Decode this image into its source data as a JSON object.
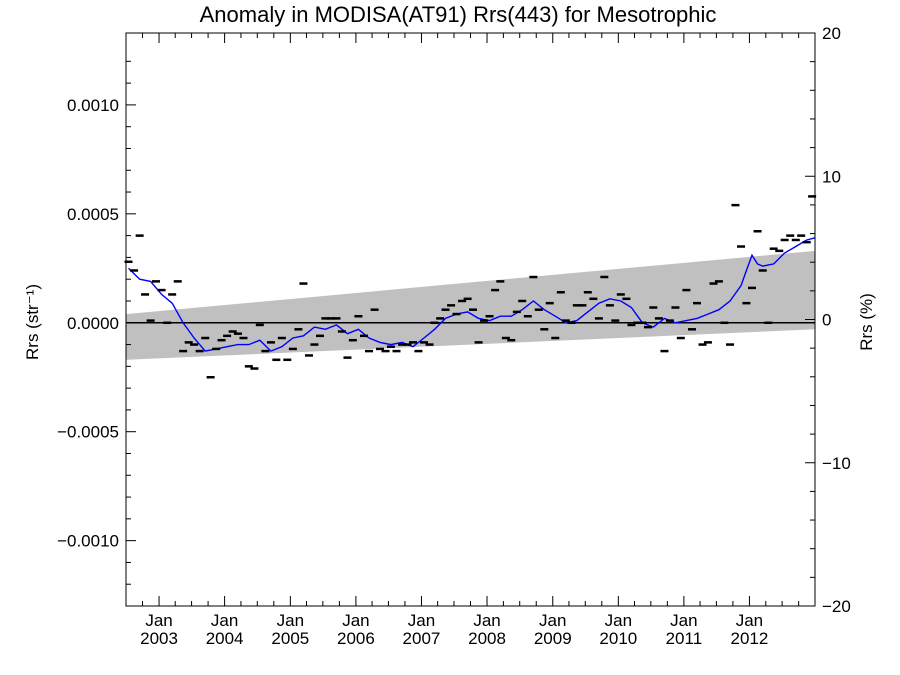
{
  "chart_data": {
    "type": "scatter",
    "title": "Anomaly in MODISA(AT91) Rrs(443) for Mesotrophic",
    "ylabel": "Rrs (str⁻¹)",
    "ylabel_right": "Rrs (%)",
    "xlim": [
      "2002-07-01",
      "2012-12-31"
    ],
    "ylim": [
      -0.0013,
      0.00133
    ],
    "ylim_right": [
      -20,
      20
    ],
    "x_ticks": [
      {
        "date": "2003-01-01",
        "top": "Jan",
        "bottom": "2003"
      },
      {
        "date": "2004-01-01",
        "top": "Jan",
        "bottom": "2004"
      },
      {
        "date": "2005-01-01",
        "top": "Jan",
        "bottom": "2005"
      },
      {
        "date": "2006-01-01",
        "top": "Jan",
        "bottom": "2006"
      },
      {
        "date": "2007-01-01",
        "top": "Jan",
        "bottom": "2007"
      },
      {
        "date": "2008-01-01",
        "top": "Jan",
        "bottom": "2008"
      },
      {
        "date": "2009-01-01",
        "top": "Jan",
        "bottom": "2009"
      },
      {
        "date": "2010-01-01",
        "top": "Jan",
        "bottom": "2010"
      },
      {
        "date": "2011-01-01",
        "top": "Jan",
        "bottom": "2011"
      },
      {
        "date": "2012-01-01",
        "top": "Jan",
        "bottom": "2012"
      }
    ],
    "y_ticks_left": [
      {
        "value": 0.001,
        "label": "0.0010"
      },
      {
        "value": 0.0005,
        "label": "0.0005"
      },
      {
        "value": 0,
        "label": "0.0000"
      },
      {
        "value": -0.0005,
        "label": "−0.0005"
      },
      {
        "value": -0.001,
        "label": "−0.0010"
      }
    ],
    "y_ticks_right": [
      {
        "value": 20,
        "label": "20"
      },
      {
        "value": 10,
        "label": "10"
      },
      {
        "value": 0,
        "label": "0"
      },
      {
        "value": -10,
        "label": "−10"
      },
      {
        "value": -20,
        "label": "−20"
      }
    ],
    "trend_band": {
      "x": [
        "2002-07-01",
        "2012-12-31"
      ],
      "upper": [
        4e-05,
        0.00033
      ],
      "lower": [
        -0.00017,
        -3e-05
      ]
    },
    "zero_line": 0,
    "colors": {
      "band": "#c0c0c0",
      "line": "#0000ff",
      "markers": "#000000",
      "axes": "#000000"
    },
    "series": [
      {
        "marker": "dash",
        "points": [
          [
            "2002-07-15",
            0.00028
          ],
          [
            "2002-08-15",
            0.00024
          ],
          [
            "2002-09-15",
            0.0004
          ],
          [
            "2002-10-15",
            0.00013
          ],
          [
            "2002-11-15",
            1e-05
          ],
          [
            "2002-12-15",
            0.00019
          ],
          [
            "2003-01-15",
            0.00015
          ],
          [
            "2003-02-15",
            0.0
          ],
          [
            "2003-03-15",
            0.00013
          ],
          [
            "2003-04-15",
            0.00019
          ],
          [
            "2003-05-15",
            -0.00013
          ],
          [
            "2003-06-15",
            -9e-05
          ],
          [
            "2003-07-15",
            -0.0001
          ],
          [
            "2003-08-15",
            -0.00013
          ],
          [
            "2003-09-15",
            -7e-05
          ],
          [
            "2003-10-15",
            -0.00025
          ],
          [
            "2003-11-15",
            -0.00012
          ],
          [
            "2003-12-15",
            -8e-05
          ],
          [
            "2004-01-15",
            -6e-05
          ],
          [
            "2004-02-15",
            -4e-05
          ],
          [
            "2004-03-15",
            -5e-05
          ],
          [
            "2004-04-15",
            -7e-05
          ],
          [
            "2004-05-15",
            -0.0002
          ],
          [
            "2004-06-15",
            -0.00021
          ],
          [
            "2004-07-15",
            -1e-05
          ],
          [
            "2004-08-15",
            -0.00013
          ],
          [
            "2004-09-15",
            -9e-05
          ],
          [
            "2004-10-15",
            -0.00017
          ],
          [
            "2004-11-15",
            -7e-05
          ],
          [
            "2004-12-15",
            -0.00017
          ],
          [
            "2005-01-15",
            -0.00012
          ],
          [
            "2005-02-15",
            -3e-05
          ],
          [
            "2005-03-15",
            0.00018
          ],
          [
            "2005-04-15",
            -0.00015
          ],
          [
            "2005-05-15",
            -0.0001
          ],
          [
            "2005-06-15",
            -6e-05
          ],
          [
            "2005-07-15",
            2e-05
          ],
          [
            "2005-08-15",
            2e-05
          ],
          [
            "2005-09-15",
            2e-05
          ],
          [
            "2005-10-15",
            -4e-05
          ],
          [
            "2005-11-15",
            -0.00016
          ],
          [
            "2005-12-15",
            -8e-05
          ],
          [
            "2006-01-15",
            3e-05
          ],
          [
            "2006-02-15",
            -6e-05
          ],
          [
            "2006-03-15",
            -0.00013
          ],
          [
            "2006-04-15",
            6e-05
          ],
          [
            "2006-05-15",
            -0.00012
          ],
          [
            "2006-06-15",
            -0.00013
          ],
          [
            "2006-07-15",
            -0.00011
          ],
          [
            "2006-08-15",
            -0.00013
          ],
          [
            "2006-09-15",
            -0.0001
          ],
          [
            "2006-10-15",
            -0.0001
          ],
          [
            "2006-11-15",
            -9e-05
          ],
          [
            "2006-12-15",
            -0.00013
          ],
          [
            "2007-01-15",
            -9e-05
          ],
          [
            "2007-02-15",
            -0.0001
          ],
          [
            "2007-03-15",
            0.0
          ],
          [
            "2007-04-15",
            2e-05
          ],
          [
            "2007-05-15",
            6e-05
          ],
          [
            "2007-06-15",
            8e-05
          ],
          [
            "2007-07-15",
            4e-05
          ],
          [
            "2007-08-15",
            0.0001
          ],
          [
            "2007-09-15",
            0.00011
          ],
          [
            "2007-10-15",
            6e-05
          ],
          [
            "2007-11-15",
            -9e-05
          ],
          [
            "2007-12-15",
            1e-05
          ],
          [
            "2008-01-15",
            3e-05
          ],
          [
            "2008-02-15",
            0.00015
          ],
          [
            "2008-03-15",
            0.00019
          ],
          [
            "2008-04-15",
            -7e-05
          ],
          [
            "2008-05-15",
            -8e-05
          ],
          [
            "2008-06-15",
            5e-05
          ],
          [
            "2008-07-15",
            0.0001
          ],
          [
            "2008-08-15",
            3e-05
          ],
          [
            "2008-09-15",
            0.00021
          ],
          [
            "2008-10-15",
            6e-05
          ],
          [
            "2008-11-15",
            -3e-05
          ],
          [
            "2008-12-15",
            9e-05
          ],
          [
            "2009-01-15",
            -7e-05
          ],
          [
            "2009-02-15",
            0.00014
          ],
          [
            "2009-03-15",
            1e-05
          ],
          [
            "2009-04-15",
            0.0
          ],
          [
            "2009-05-15",
            8e-05
          ],
          [
            "2009-06-15",
            8e-05
          ],
          [
            "2009-07-15",
            0.00014
          ],
          [
            "2009-08-15",
            0.00011
          ],
          [
            "2009-09-15",
            2e-05
          ],
          [
            "2009-10-15",
            0.00021
          ],
          [
            "2009-11-15",
            8e-05
          ],
          [
            "2009-12-15",
            1e-05
          ],
          [
            "2010-01-15",
            0.00013
          ],
          [
            "2010-02-15",
            0.00011
          ],
          [
            "2010-03-15",
            -1e-05
          ],
          [
            "2010-04-15",
            0.0
          ],
          [
            "2010-05-15",
            0.0
          ],
          [
            "2010-06-15",
            -2e-05
          ],
          [
            "2010-07-15",
            7e-05
          ],
          [
            "2010-08-15",
            2e-05
          ],
          [
            "2010-09-15",
            -0.00013
          ],
          [
            "2010-10-15",
            1e-05
          ],
          [
            "2010-11-15",
            7e-05
          ],
          [
            "2010-12-15",
            -7e-05
          ],
          [
            "2011-01-15",
            0.00015
          ],
          [
            "2011-02-15",
            -3e-05
          ],
          [
            "2011-03-15",
            9e-05
          ],
          [
            "2011-04-15",
            -0.0001
          ],
          [
            "2011-05-15",
            -9e-05
          ],
          [
            "2011-06-15",
            0.00018
          ],
          [
            "2011-07-15",
            0.00019
          ],
          [
            "2011-08-15",
            0.0
          ],
          [
            "2011-09-15",
            -0.0001
          ],
          [
            "2011-10-15",
            0.00054
          ],
          [
            "2011-11-15",
            0.00035
          ],
          [
            "2011-12-15",
            9e-05
          ],
          [
            "2012-01-15",
            0.00016
          ],
          [
            "2012-02-15",
            0.00042
          ],
          [
            "2012-03-15",
            0.00024
          ],
          [
            "2012-04-15",
            0.0
          ],
          [
            "2012-05-15",
            0.00034
          ],
          [
            "2012-06-15",
            0.00033
          ],
          [
            "2012-07-15",
            0.00038
          ],
          [
            "2012-08-15",
            0.0004
          ],
          [
            "2012-09-15",
            0.00038
          ],
          [
            "2012-10-15",
            0.0004
          ],
          [
            "2012-11-15",
            0.00037
          ],
          [
            "2012-12-15",
            0.00058
          ]
        ]
      },
      {
        "marker": "line",
        "points": [
          [
            "2002-07-15",
            0.00025
          ],
          [
            "2002-09-15",
            0.0002
          ],
          [
            "2002-11-15",
            0.00019
          ],
          [
            "2003-01-15",
            0.00013
          ],
          [
            "2003-03-15",
            9e-05
          ],
          [
            "2003-05-15",
            0.0
          ],
          [
            "2003-07-15",
            -7e-05
          ],
          [
            "2003-09-15",
            -0.00013
          ],
          [
            "2003-11-15",
            -0.00012
          ],
          [
            "2004-01-15",
            -0.00011
          ],
          [
            "2004-03-15",
            -0.0001
          ],
          [
            "2004-05-15",
            -0.0001
          ],
          [
            "2004-07-15",
            -8e-05
          ],
          [
            "2004-09-15",
            -0.00013
          ],
          [
            "2004-11-15",
            -0.00011
          ],
          [
            "2005-01-15",
            -7e-05
          ],
          [
            "2005-03-15",
            -6e-05
          ],
          [
            "2005-05-15",
            -2e-05
          ],
          [
            "2005-07-15",
            -3e-05
          ],
          [
            "2005-09-15",
            -1e-05
          ],
          [
            "2005-11-15",
            -5e-05
          ],
          [
            "2006-01-15",
            -3e-05
          ],
          [
            "2006-03-15",
            -7e-05
          ],
          [
            "2006-05-15",
            -9e-05
          ],
          [
            "2006-07-15",
            -0.0001
          ],
          [
            "2006-09-15",
            -9e-05
          ],
          [
            "2006-11-15",
            -0.00011
          ],
          [
            "2007-01-15",
            -7e-05
          ],
          [
            "2007-03-15",
            -3e-05
          ],
          [
            "2007-05-15",
            2e-05
          ],
          [
            "2007-07-15",
            4e-05
          ],
          [
            "2007-09-15",
            5e-05
          ],
          [
            "2007-11-15",
            2e-05
          ],
          [
            "2008-01-15",
            1e-05
          ],
          [
            "2008-03-15",
            3e-05
          ],
          [
            "2008-05-15",
            3e-05
          ],
          [
            "2008-07-15",
            6e-05
          ],
          [
            "2008-09-15",
            0.0001
          ],
          [
            "2008-11-15",
            6e-05
          ],
          [
            "2009-01-15",
            3e-05
          ],
          [
            "2009-03-15",
            0.0
          ],
          [
            "2009-05-15",
            1e-05
          ],
          [
            "2009-07-15",
            5e-05
          ],
          [
            "2009-09-15",
            9e-05
          ],
          [
            "2009-11-15",
            0.00011
          ],
          [
            "2010-01-15",
            0.0001
          ],
          [
            "2010-03-15",
            7e-05
          ],
          [
            "2010-05-15",
            0.0
          ],
          [
            "2010-07-15",
            -2e-05
          ],
          [
            "2010-09-15",
            2e-05
          ],
          [
            "2010-11-15",
            0.0
          ],
          [
            "2011-01-15",
            1e-05
          ],
          [
            "2011-03-15",
            2e-05
          ],
          [
            "2011-05-15",
            4e-05
          ],
          [
            "2011-07-15",
            6e-05
          ],
          [
            "2011-09-15",
            0.0001
          ],
          [
            "2011-11-15",
            0.00017
          ],
          [
            "2011-12-15",
            0.00024
          ],
          [
            "2012-01-15",
            0.00031
          ],
          [
            "2012-02-15",
            0.00027
          ],
          [
            "2012-03-15",
            0.00026
          ],
          [
            "2012-05-15",
            0.00027
          ],
          [
            "2012-07-15",
            0.00032
          ],
          [
            "2012-09-15",
            0.00035
          ],
          [
            "2012-11-15",
            0.00038
          ],
          [
            "2012-12-31",
            0.00039
          ]
        ]
      }
    ]
  }
}
